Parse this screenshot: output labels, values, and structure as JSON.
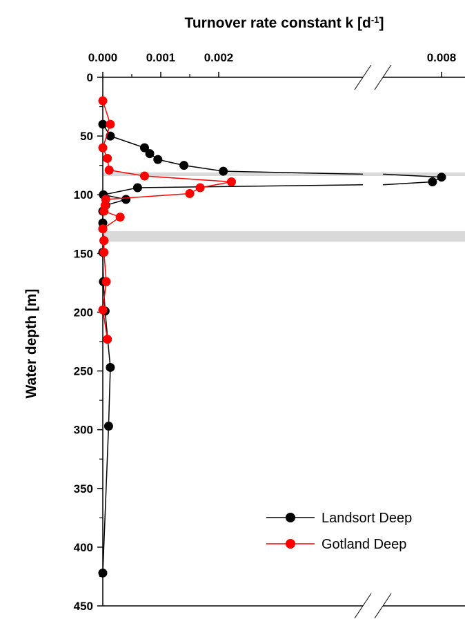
{
  "chart_data": {
    "type": "scatter",
    "title": "",
    "xlabel": "Turnover rate constant k [d",
    "xlabel_sup": "-1",
    "xlabel_end": "]",
    "ylabel": "Water depth [m]",
    "x_ticks": [
      "0.000",
      "0.001",
      "0.002",
      "0.008"
    ],
    "y_ticks": [
      "0",
      "50",
      "100",
      "150",
      "200",
      "250",
      "300",
      "350",
      "400",
      "450"
    ],
    "x_axis": "top, broken between 0.0024 and 0.0074",
    "xlim_segments": [
      [
        -0.0001,
        0.0024
      ],
      [
        0.0074,
        0.0082
      ]
    ],
    "ylim": [
      0,
      450
    ],
    "y_reversed": true,
    "grid": false,
    "legend_position": "bottom-right",
    "shaded_bands": [
      {
        "from": 81,
        "to": 84
      },
      {
        "from": 131,
        "to": 140
      }
    ],
    "series": [
      {
        "name": "Landsort Deep",
        "color": "#000000",
        "points": [
          {
            "x": 0.0,
            "y": 40
          },
          {
            "x": 0.00013,
            "y": 50
          },
          {
            "x": 0.00072,
            "y": 60
          },
          {
            "x": 0.00081,
            "y": 65
          },
          {
            "x": 0.00095,
            "y": 70
          },
          {
            "x": 0.0014,
            "y": 75
          },
          {
            "x": 0.00208,
            "y": 80
          },
          {
            "x": 0.008,
            "y": 85
          },
          {
            "x": 0.0078,
            "y": 89
          },
          {
            "x": 0.0006,
            "y": 94
          },
          {
            "x": 1e-05,
            "y": 100
          },
          {
            "x": 0.0004,
            "y": 104
          },
          {
            "x": 5e-05,
            "y": 109
          },
          {
            "x": 0.0,
            "y": 114
          },
          {
            "x": 0.0,
            "y": 124
          },
          {
            "x": 0.0,
            "y": 129
          },
          {
            "x": 2e-05,
            "y": 139
          },
          {
            "x": 0.0,
            "y": 149
          },
          {
            "x": 1e-05,
            "y": 174
          },
          {
            "x": 4e-05,
            "y": 199
          },
          {
            "x": 0.00013,
            "y": 247
          },
          {
            "x": 0.0001,
            "y": 297
          },
          {
            "x": 0.0,
            "y": 422
          }
        ]
      },
      {
        "name": "Gotland Deep",
        "color": "#ff0000",
        "points": [
          {
            "x": 0.0,
            "y": 20
          },
          {
            "x": 0.00013,
            "y": 40
          },
          {
            "x": 0.0,
            "y": 60
          },
          {
            "x": 8e-05,
            "y": 69
          },
          {
            "x": 0.00011,
            "y": 79
          },
          {
            "x": 0.00072,
            "y": 84
          },
          {
            "x": 0.00222,
            "y": 89
          },
          {
            "x": 0.00168,
            "y": 94
          },
          {
            "x": 0.0015,
            "y": 99
          },
          {
            "x": 5e-05,
            "y": 104
          },
          {
            "x": 4e-05,
            "y": 109
          },
          {
            "x": 2e-05,
            "y": 114
          },
          {
            "x": 0.0003,
            "y": 119
          },
          {
            "x": 0.0,
            "y": 129
          },
          {
            "x": 2e-05,
            "y": 139
          },
          {
            "x": 2e-05,
            "y": 149
          },
          {
            "x": 6e-05,
            "y": 174
          },
          {
            "x": 0.0,
            "y": 198
          },
          {
            "x": 8e-05,
            "y": 223
          }
        ]
      }
    ]
  }
}
